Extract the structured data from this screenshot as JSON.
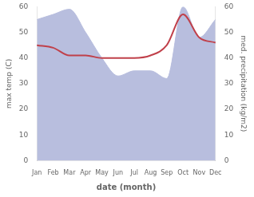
{
  "chart_data": {
    "type": "line",
    "xlabel": "date (month)",
    "ylabel": "max temp (C)",
    "y2label": "med. precipitation (kg/m2)",
    "categories": [
      "Jan",
      "Feb",
      "Mar",
      "Apr",
      "May",
      "Jun",
      "Jul",
      "Aug",
      "Sep",
      "Oct",
      "Nov",
      "Dec"
    ],
    "series": [
      {
        "type": "area",
        "axis": "y2",
        "color": "#b8bede",
        "values": [
          55,
          57,
          59,
          50,
          40,
          33,
          35,
          35,
          32,
          60,
          48,
          55
        ]
      },
      {
        "type": "line",
        "axis": "y",
        "color": "#c0404a",
        "values": [
          45,
          44,
          41,
          41,
          40,
          40,
          40,
          41,
          45,
          57,
          48,
          46
        ]
      }
    ],
    "ylim": [
      0,
      60
    ],
    "yticks": [
      0,
      10,
      20,
      30,
      40,
      50,
      60
    ],
    "y2lim": [
      0,
      60
    ],
    "y2ticks": [
      0,
      10,
      20,
      30,
      40,
      50,
      60
    ],
    "grid": false
  }
}
